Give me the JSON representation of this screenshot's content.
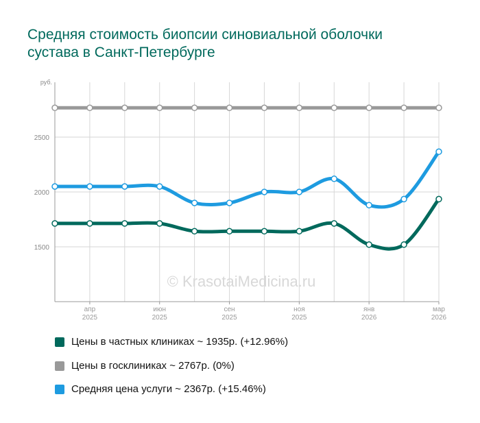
{
  "title": "Средняя стоимость биопсии синовиальной оболочки сустава в Санкт-Петербурге",
  "chart_data": {
    "type": "line",
    "title": "Средняя стоимость биопсии синовиальной оболочки сустава в Санкт-Петербурге",
    "ylabel": "руб.",
    "ylim": [
      1000,
      3000
    ],
    "yticks": [
      "1500",
      "2000",
      "2500"
    ],
    "ytick_values": [
      1500,
      2000,
      2500
    ],
    "xticks": [
      {
        "index": 1,
        "month": "апр",
        "year": "2025"
      },
      {
        "index": 3,
        "month": "июн",
        "year": "2025"
      },
      {
        "index": 5,
        "month": "сен",
        "year": "2025"
      },
      {
        "index": 7,
        "month": "ноя",
        "year": "2025"
      },
      {
        "index": 9,
        "month": "янв",
        "year": "2026"
      },
      {
        "index": 11,
        "month": "мар",
        "year": "2026"
      }
    ],
    "point_count": 12,
    "series": [
      {
        "name": "Цены в госклиниках ~ 2767р. (0%)",
        "color": "#999999",
        "values": [
          2767,
          2767,
          2767,
          2767,
          2767,
          2767,
          2767,
          2767,
          2767,
          2767,
          2767,
          2767
        ]
      },
      {
        "name": "Средняя цена услуги ~ 2367р. (+15.46%)",
        "color": "#1e9be0",
        "values": [
          2050,
          2050,
          2050,
          2050,
          1900,
          1900,
          2000,
          2000,
          2120,
          1880,
          1935,
          2367
        ]
      },
      {
        "name": "Цены в частных клиниках ~ 1935р. (+12.96%)",
        "color": "#00695c",
        "values": [
          1713,
          1713,
          1713,
          1713,
          1642,
          1642,
          1642,
          1642,
          1713,
          1520,
          1520,
          1935
        ]
      }
    ],
    "grid": true,
    "watermark": "© KrasotaiMedicina.ru"
  },
  "legend": [
    {
      "label": "Цены в частных клиниках ~ 1935р. (+12.96%)",
      "color": "#00695c"
    },
    {
      "label": "Цены в госклиниках ~ 2767р. (0%)",
      "color": "#999999"
    },
    {
      "label": "Средняя цена услуги ~ 2367р. (+15.46%)",
      "color": "#1e9be0"
    }
  ]
}
